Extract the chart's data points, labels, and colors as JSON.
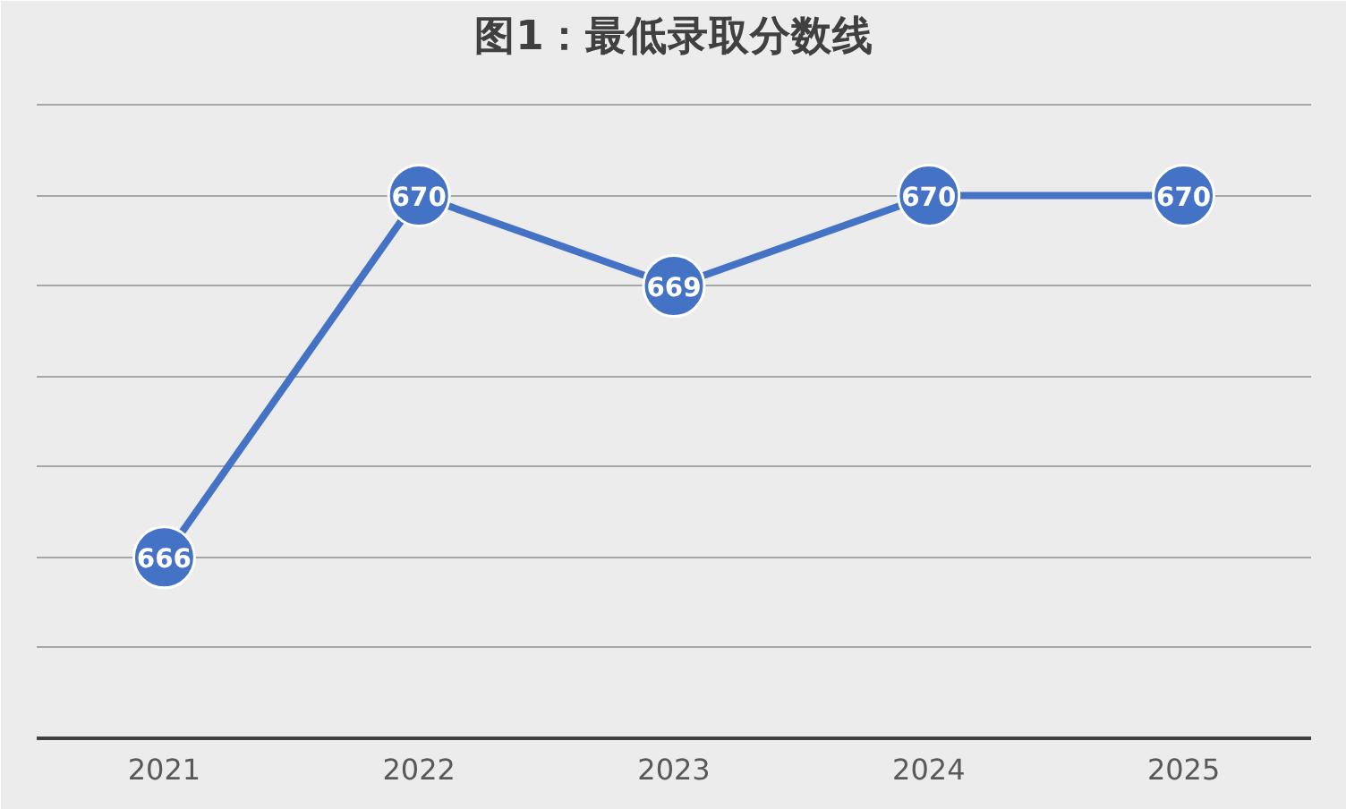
{
  "chart_data": {
    "type": "line",
    "title": "图1：最低录取分数线",
    "categories": [
      "2021",
      "2022",
      "2023",
      "2024",
      "2025"
    ],
    "series": [
      {
        "color": "#4472c4",
        "values": [
          666,
          670,
          669,
          670,
          670
        ]
      }
    ],
    "ylim": [
      664,
      671.4
    ],
    "yticks": [
      664,
      665,
      666,
      667,
      668,
      669,
      670,
      671
    ],
    "tick_labels": "x",
    "grid": "y",
    "marker": "circle",
    "line_style": "solid",
    "data_labels": true
  }
}
